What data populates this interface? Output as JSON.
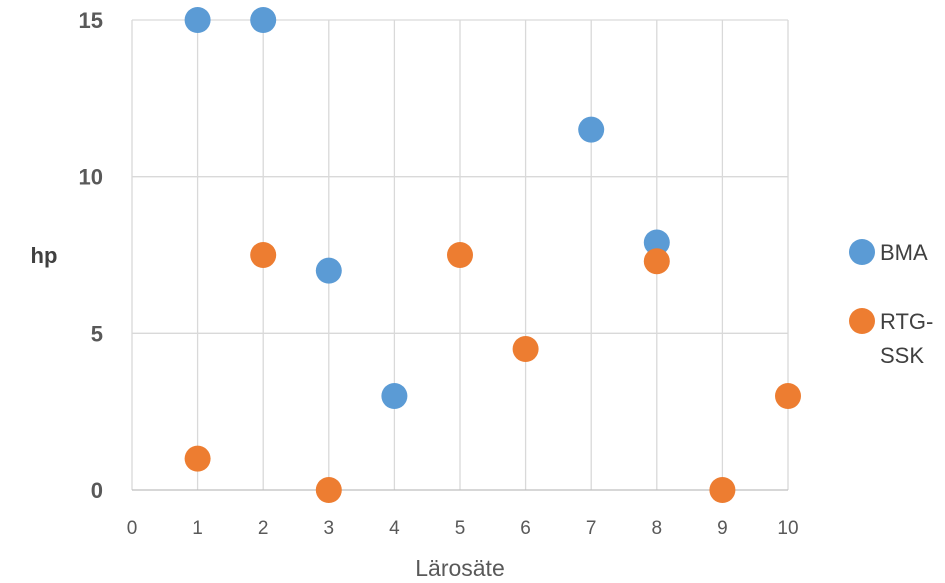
{
  "chart_data": {
    "type": "scatter",
    "xlabel": "Lärosäte",
    "ylabel": "hp",
    "xlim": [
      0,
      10
    ],
    "ylim": [
      0,
      15
    ],
    "x_ticks": [
      "0",
      "1",
      "2",
      "3",
      "4",
      "5",
      "6",
      "7",
      "8",
      "9",
      "10"
    ],
    "y_ticks": [
      "0",
      "5",
      "10",
      "15"
    ],
    "grid": "vertical and horizontal",
    "legend_position": "right",
    "series": [
      {
        "name": "BMA",
        "color": "#5B9BD5",
        "points": [
          [
            1,
            15
          ],
          [
            2,
            15
          ],
          [
            3,
            7
          ],
          [
            4,
            3
          ],
          [
            7,
            11.5
          ],
          [
            8,
            7.9
          ]
        ]
      },
      {
        "name": "RTG-SSK",
        "name_lines": [
          "RTG-",
          "SSK"
        ],
        "color": "#ED7D31",
        "points": [
          [
            1,
            1
          ],
          [
            2,
            7.5
          ],
          [
            3,
            0
          ],
          [
            5,
            7.5
          ],
          [
            6,
            4.5
          ],
          [
            8,
            7.3
          ],
          [
            9,
            0
          ],
          [
            10,
            3
          ]
        ]
      }
    ]
  }
}
